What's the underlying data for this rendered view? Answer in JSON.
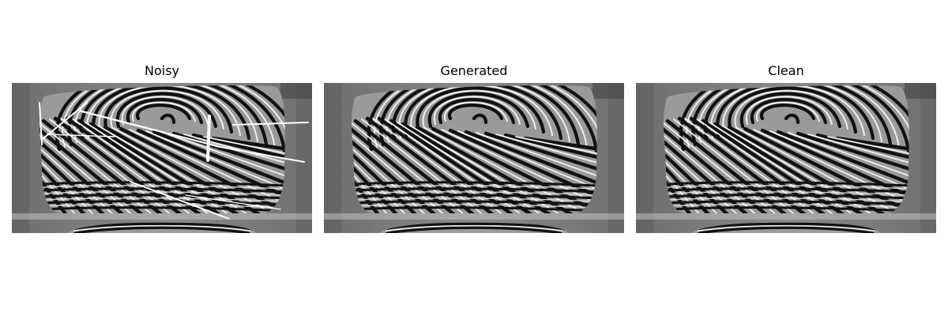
{
  "figure": {
    "panels": [
      {
        "title": "Noisy",
        "image": "noisy-fingerprint",
        "noise_strokes": true
      },
      {
        "title": "Generated",
        "image": "generated-fingerprint",
        "noise_strokes": false
      },
      {
        "title": "Clean",
        "image": "clean-fingerprint",
        "noise_strokes": false
      }
    ]
  },
  "colors": {
    "background": "#ffffff",
    "image_bg": "#7a7a7a",
    "ridge_dark": "#0d0d0d",
    "ridge_light": "#f2f2f2",
    "noise_stroke": "#ffffff"
  }
}
